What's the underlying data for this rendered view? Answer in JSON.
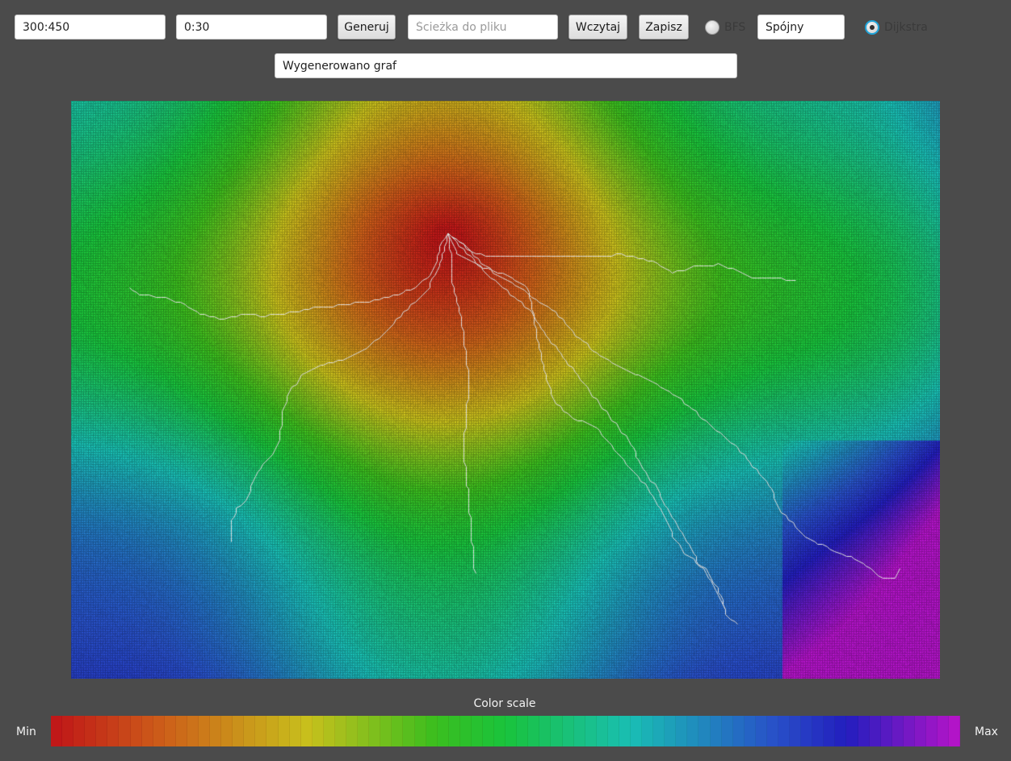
{
  "toolbar": {
    "size_value": "300:450",
    "weight_range_value": "0:30",
    "generate_label": "Generuj",
    "file_path_value": "",
    "file_path_placeholder": "Ścieżka do pliku",
    "load_label": "Wczytaj",
    "save_label": "Zapisz",
    "bfs_label": "BFS",
    "bfs_selected": false,
    "connectivity_value": "Spójny",
    "dijkstra_label": "Dijkstra",
    "dijkstra_selected": true
  },
  "status": {
    "message": "Wygenerowano graf"
  },
  "graph_view": {
    "rows": 300,
    "columns": 450,
    "colors": {
      "min": "#c01818",
      "max": "#b010c8",
      "path": "#dcdcdc"
    }
  },
  "color_scale": {
    "title": "Color scale",
    "min_label": "Min",
    "max_label": "Max",
    "steps": 80
  }
}
